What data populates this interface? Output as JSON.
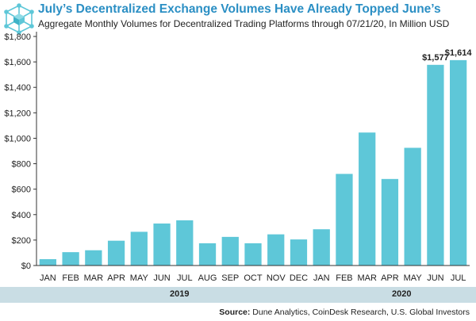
{
  "header": {
    "title": "July’s Decentralized Exchange Volumes Have Already Topped June’s",
    "subtitle": "Aggregate Monthly Volumes for Decentralized Trading Platforms through 07/21/20, In Million USD"
  },
  "footer": {
    "source_label": "Source:",
    "source_text": "Dune Analytics, CoinDesk Research, U.S. Global Investors"
  },
  "colors": {
    "bar": "#5ec7d8",
    "title": "#2b8fc4",
    "band": "#c9dde4"
  },
  "chart_data": {
    "type": "bar",
    "title": "July’s Decentralized Exchange Volumes Have Already Topped June’s",
    "subtitle": "Aggregate Monthly Volumes for Decentralized Trading Platforms through 07/21/20, In Million USD",
    "categories": [
      "JAN",
      "FEB",
      "MAR",
      "APR",
      "MAY",
      "JUN",
      "JUL",
      "AUG",
      "SEP",
      "OCT",
      "NOV",
      "DEC",
      "JAN",
      "FEB",
      "MAR",
      "APR",
      "MAY",
      "JUN",
      "JUL"
    ],
    "values": [
      50,
      105,
      120,
      195,
      265,
      330,
      355,
      175,
      225,
      175,
      245,
      205,
      285,
      720,
      1045,
      680,
      925,
      1577,
      1614
    ],
    "year_groups": [
      {
        "label": "2019",
        "from": 0,
        "to": 11
      },
      {
        "label": "2020",
        "from": 12,
        "to": 18
      }
    ],
    "data_labels": [
      {
        "index": 17,
        "text": "$1,577"
      },
      {
        "index": 18,
        "text": "$1,614"
      }
    ],
    "yticks": [
      "$0",
      "$200",
      "$400",
      "$600",
      "$800",
      "$1,000",
      "$1,200",
      "$1,400",
      "$1,600",
      "$1,800"
    ],
    "ylim": [
      0,
      1800
    ],
    "xlabel": "",
    "ylabel": "",
    "grid": false,
    "legend": "none"
  }
}
